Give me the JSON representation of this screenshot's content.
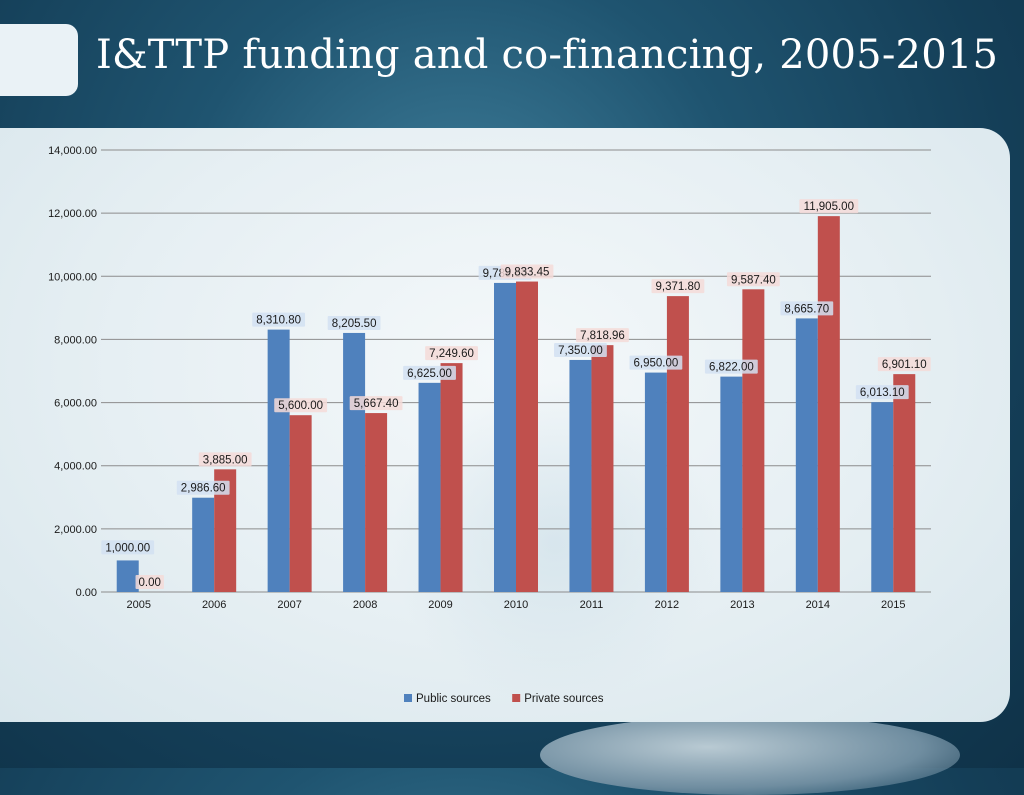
{
  "slide": {
    "title": "I&TTP funding and co-financing, 2005-2015"
  },
  "colors": {
    "public": "#4f81bd",
    "private": "#c0504d",
    "grid": "#8c8c8c",
    "text": "#1a1a1a"
  },
  "chart_data": {
    "type": "bar",
    "title": "",
    "xlabel": "",
    "ylabel": "",
    "ylim": [
      0,
      14000
    ],
    "yticks": [
      "0.00",
      "2,000.00",
      "4,000.00",
      "6,000.00",
      "8,000.00",
      "10,000.00",
      "12,000.00",
      "14,000.00"
    ],
    "grid": true,
    "legend_position": "bottom",
    "categories": [
      "2005",
      "2006",
      "2007",
      "2008",
      "2009",
      "2010",
      "2011",
      "2012",
      "2013",
      "2014",
      "2015"
    ],
    "series": [
      {
        "name": "Public sources",
        "values": [
          1000.0,
          2986.6,
          8310.8,
          8205.5,
          6625.0,
          9789.8,
          7350.0,
          6950.0,
          6822.0,
          8665.7,
          6013.1
        ],
        "labels": [
          "1,000.00",
          "2,986.60",
          "8,310.80",
          "8,205.50",
          "6,625.00",
          "9,789.80",
          "7,350.00",
          "6,950.00",
          "6,822.00",
          "8,665.70",
          "6,013.10"
        ]
      },
      {
        "name": "Private sources",
        "values": [
          0.0,
          3885.0,
          5600.0,
          5667.4,
          7249.6,
          9833.45,
          7818.96,
          9371.8,
          9587.4,
          11905.0,
          6901.1
        ],
        "labels": [
          "0.00",
          "3,885.00",
          "5,600.00",
          "5,667.40",
          "7,249.60",
          "9,833.45",
          "7,818.96",
          "9,371.80",
          "9,587.40",
          "11,905.00",
          "6,901.10"
        ]
      }
    ]
  }
}
